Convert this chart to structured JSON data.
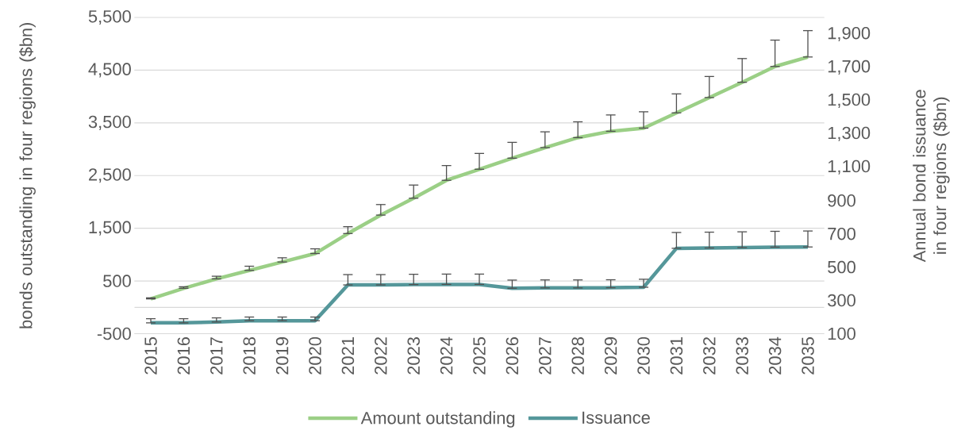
{
  "chart_data": {
    "type": "line",
    "ylabel": "bonds outstanding in four regions ($bn)",
    "y2label": "Annual bond issuance in four regions ($bn)",
    "categories": [
      "2015",
      "2016",
      "2017",
      "2018",
      "2019",
      "2020",
      "2021",
      "2022",
      "2023",
      "2024",
      "2025",
      "2026",
      "2027",
      "2028",
      "2029",
      "2030",
      "2031",
      "2032",
      "2033",
      "2034",
      "2035"
    ],
    "series": [
      {
        "name": "Amount outstanding",
        "color": "#9bcf86",
        "values": [
          160,
          360,
          540,
          700,
          860,
          1020,
          1400,
          1750,
          2070,
          2410,
          2620,
          2830,
          3030,
          3220,
          3340,
          3400,
          3690,
          3980,
          4270,
          4570,
          4750
        ],
        "errors": [
          [
            160,
            180
          ],
          [
            360,
            390
          ],
          [
            540,
            590
          ],
          [
            700,
            780
          ],
          [
            860,
            940
          ],
          [
            1020,
            1110
          ],
          [
            1400,
            1530
          ],
          [
            1750,
            1950
          ],
          [
            2070,
            2320
          ],
          [
            2410,
            2690
          ],
          [
            2620,
            2920
          ],
          [
            2830,
            3130
          ],
          [
            3030,
            3330
          ],
          [
            3220,
            3520
          ],
          [
            3340,
            3650
          ],
          [
            3400,
            3710
          ],
          [
            3690,
            4050
          ],
          [
            3980,
            4380
          ],
          [
            4270,
            4720
          ],
          [
            4570,
            5070
          ],
          [
            4750,
            5250
          ]
        ]
      },
      {
        "name": "Issuance",
        "color": "#55979a",
        "axis": "y2",
        "values": [
          165,
          165,
          170,
          178,
          178,
          178,
          393,
          393,
          395,
          396,
          396,
          373,
          375,
          375,
          376,
          379,
          613,
          615,
          617,
          620,
          621
        ],
        "errors": [
          [
            165,
            190
          ],
          [
            165,
            190
          ],
          [
            170,
            195
          ],
          [
            178,
            200
          ],
          [
            178,
            200
          ],
          [
            178,
            200
          ],
          [
            393,
            455
          ],
          [
            393,
            455
          ],
          [
            395,
            457
          ],
          [
            396,
            458
          ],
          [
            396,
            458
          ],
          [
            373,
            422
          ],
          [
            375,
            423
          ],
          [
            375,
            423
          ],
          [
            376,
            424
          ],
          [
            379,
            427
          ],
          [
            613,
            708
          ],
          [
            615,
            710
          ],
          [
            617,
            712
          ],
          [
            620,
            715
          ],
          [
            621,
            717
          ]
        ]
      }
    ],
    "ylim": [
      -500,
      5500
    ],
    "yticks": [
      -500,
      500,
      {
        "value": 1500,
        "label": "1,500"
      },
      {
        "value": 2500,
        "label": "2,500"
      },
      {
        "value": 3500,
        "label": "3,500"
      },
      {
        "value": 4500,
        "label": "4,500"
      },
      {
        "value": 5500,
        "label": "5,500"
      }
    ],
    "y2lim": [
      100,
      2000
    ],
    "y2ticks": [
      100,
      300,
      500,
      700,
      900,
      {
        "value": 1100,
        "label": "1,100"
      },
      {
        "value": 1300,
        "label": "1,300"
      },
      {
        "value": 1500,
        "label": "1,500"
      },
      {
        "value": 1700,
        "label": "1,700"
      },
      {
        "value": 1900,
        "label": "1,900"
      }
    ],
    "ref_lines": [
      {
        "axis": "y",
        "value": 0,
        "color": "#d9d9d9"
      }
    ],
    "grid": "y",
    "legend": "bottom",
    "marker": "none",
    "line_style": "solid"
  }
}
